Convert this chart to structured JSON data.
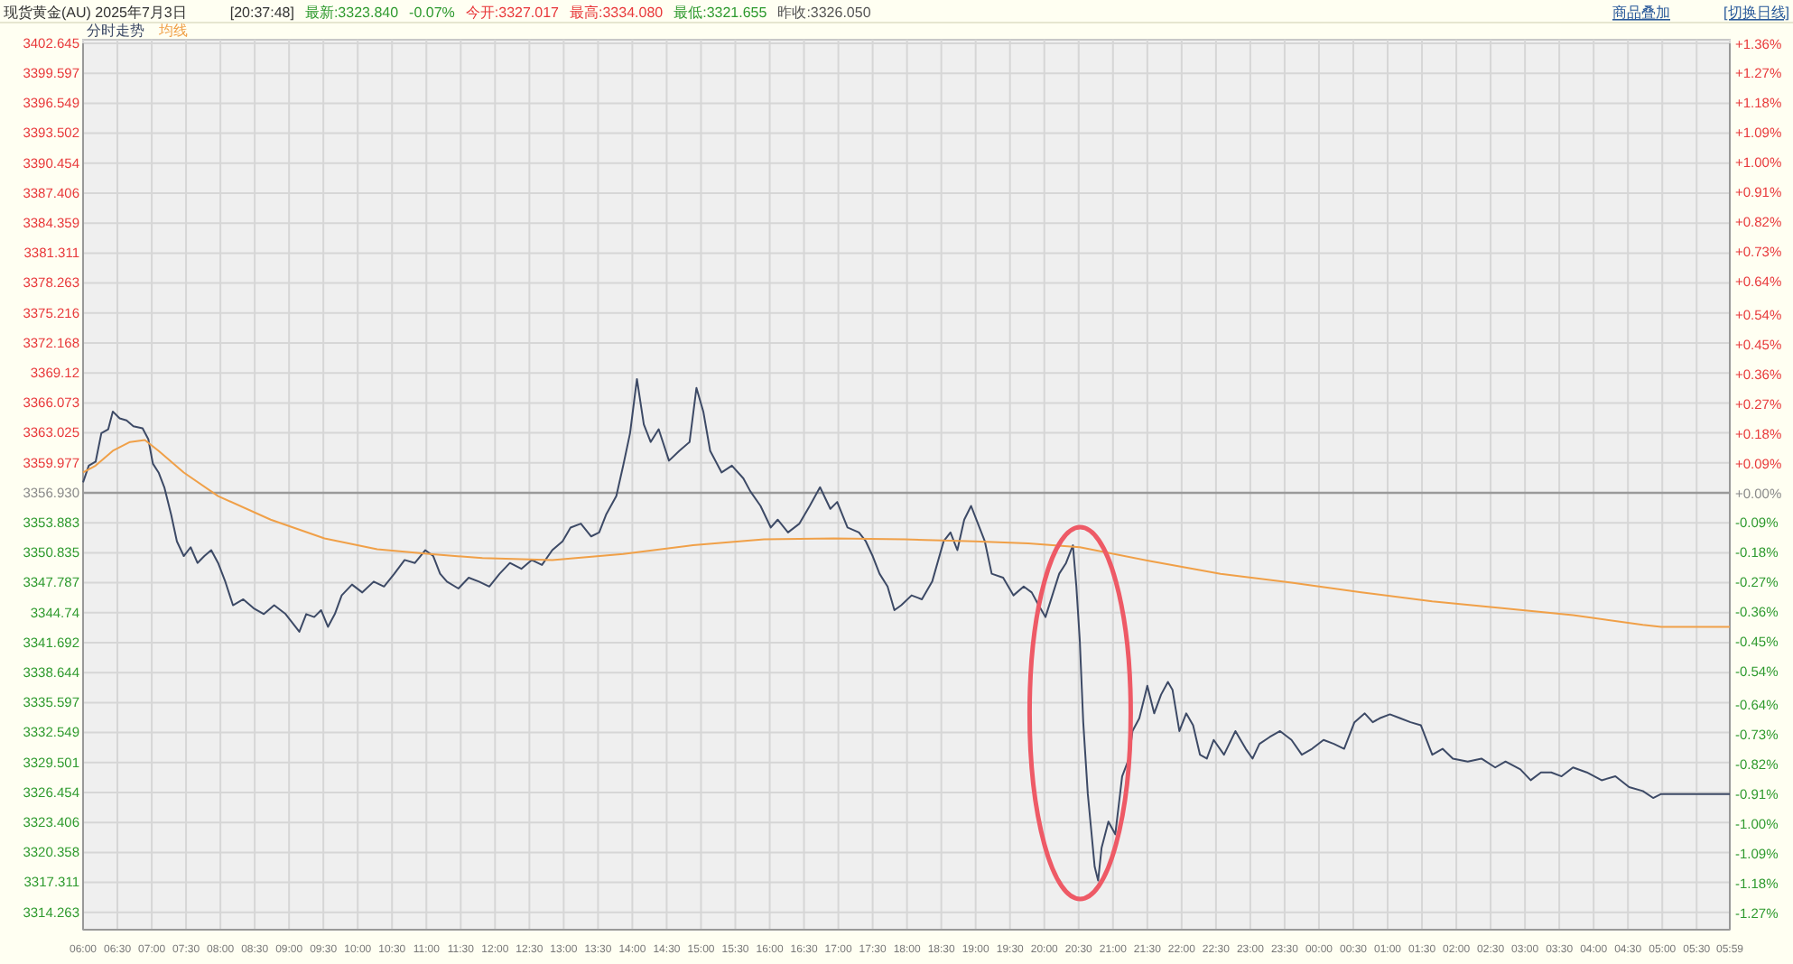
{
  "chart_data": {
    "type": "line",
    "title": "现货黄金(AU) 2025年7月3日",
    "annotations": [
      "[20:37:48]",
      "最新:3323.840",
      "-0.07%",
      "今开:3327.017",
      "最高:3334.080",
      "最低:3321.655",
      "昨收:3326.050",
      "商品叠加",
      "[切换日线]"
    ],
    "xlim": [
      "2025-07-03T06:00",
      "2025-07-04T05:59"
    ],
    "xticks": [
      {
        "value": "2025-07-03T06:00",
        "label": "06:00"
      },
      {
        "value": "2025-07-03T06:30",
        "label": "06:30"
      },
      {
        "value": "2025-07-03T07:00",
        "label": "07:00"
      },
      {
        "value": "2025-07-03T07:30",
        "label": "07:30"
      },
      {
        "value": "2025-07-03T08:00",
        "label": "08:00"
      },
      {
        "value": "2025-07-03T08:30",
        "label": "08:30"
      },
      {
        "value": "2025-07-03T09:00",
        "label": "09:00"
      },
      {
        "value": "2025-07-03T09:30",
        "label": "09:30"
      },
      {
        "value": "2025-07-03T10:00",
        "label": "10:00"
      },
      {
        "value": "2025-07-03T10:30",
        "label": "10:30"
      },
      {
        "value": "2025-07-03T11:00",
        "label": "11:00"
      },
      {
        "value": "2025-07-03T11:30",
        "label": "11:30"
      },
      {
        "value": "2025-07-03T12:00",
        "label": "12:00"
      },
      {
        "value": "2025-07-03T12:30",
        "label": "12:30"
      },
      {
        "value": "2025-07-03T13:00",
        "label": "13:00"
      },
      {
        "value": "2025-07-03T13:30",
        "label": "13:30"
      },
      {
        "value": "2025-07-03T14:00",
        "label": "14:00"
      },
      {
        "value": "2025-07-03T14:30",
        "label": "14:30"
      },
      {
        "value": "2025-07-03T15:00",
        "label": "15:00"
      },
      {
        "value": "2025-07-03T15:30",
        "label": "15:30"
      },
      {
        "value": "2025-07-03T16:00",
        "label": "16:00"
      },
      {
        "value": "2025-07-03T16:30",
        "label": "16:30"
      },
      {
        "value": "2025-07-03T17:00",
        "label": "17:00"
      },
      {
        "value": "2025-07-03T17:30",
        "label": "17:30"
      },
      {
        "value": "2025-07-03T18:00",
        "label": "18:00"
      },
      {
        "value": "2025-07-03T18:30",
        "label": "18:30"
      },
      {
        "value": "2025-07-03T19:00",
        "label": "19:00"
      },
      {
        "value": "2025-07-03T19:30",
        "label": "19:30"
      },
      {
        "value": "2025-07-03T20:00",
        "label": "20:00"
      },
      {
        "value": "2025-07-03T20:30",
        "label": "20:30"
      },
      {
        "value": "2025-07-03T21:00",
        "label": "21:00"
      },
      {
        "value": "2025-07-03T21:30",
        "label": "21:30"
      },
      {
        "value": "2025-07-03T22:00",
        "label": "22:00"
      },
      {
        "value": "2025-07-03T22:30",
        "label": "22:30"
      },
      {
        "value": "2025-07-03T23:00",
        "label": "23:00"
      },
      {
        "value": "2025-07-03T23:30",
        "label": "23:30"
      },
      {
        "value": "2025-07-04T00:00",
        "label": "00:00"
      },
      {
        "value": "2025-07-04T00:30",
        "label": "00:30"
      },
      {
        "value": "2025-07-04T01:00",
        "label": "01:00"
      },
      {
        "value": "2025-07-04T01:30",
        "label": "01:30"
      },
      {
        "value": "2025-07-04T02:00",
        "label": "02:00"
      },
      {
        "value": "2025-07-04T02:30",
        "label": "02:30"
      },
      {
        "value": "2025-07-04T03:00",
        "label": "03:00"
      },
      {
        "value": "2025-07-04T03:30",
        "label": "03:30"
      },
      {
        "value": "2025-07-04T04:00",
        "label": "04:00"
      },
      {
        "value": "2025-07-04T04:30",
        "label": "04:30"
      },
      {
        "value": "2025-07-04T05:00",
        "label": "05:00"
      },
      {
        "value": "2025-07-04T05:30",
        "label": "05:30"
      },
      {
        "value": "2025-07-04T05:59",
        "label": "05:59"
      }
    ],
    "ylim": [
      3312.5,
      3402.645
    ],
    "yticks": [
      3402.645,
      3399.597,
      3396.549,
      3393.502,
      3390.454,
      3387.406,
      3384.359,
      3381.311,
      3378.263,
      3375.216,
      3372.168,
      3369.12,
      3366.073,
      3363.025,
      3359.977,
      {
        "value": 3356.93,
        "label": "3356.930"
      },
      3353.883,
      3350.835,
      3347.787,
      3344.74,
      3341.692,
      3338.644,
      3335.597,
      3332.549,
      3329.501,
      3326.454,
      3323.406,
      3320.358,
      3317.311,
      3314.263
    ],
    "y2lim": [
      -1.32,
      1.362
    ],
    "y2ticks": [
      {
        "value": 1.36,
        "label": "+1.36%"
      },
      {
        "value": 1.27,
        "label": "+1.27%"
      },
      {
        "value": 1.18,
        "label": "+1.18%"
      },
      {
        "value": 1.09,
        "label": "+1.09%"
      },
      {
        "value": 1.0,
        "label": "+1.00%"
      },
      {
        "value": 0.91,
        "label": "+0.91%"
      },
      {
        "value": 0.82,
        "label": "+0.82%"
      },
      {
        "value": 0.73,
        "label": "+0.73%"
      },
      {
        "value": 0.64,
        "label": "+0.64%"
      },
      {
        "value": 0.54,
        "label": "+0.54%"
      },
      {
        "value": 0.45,
        "label": "+0.45%"
      },
      {
        "value": 0.36,
        "label": "+0.36%"
      },
      {
        "value": 0.27,
        "label": "+0.27%"
      },
      {
        "value": 0.18,
        "label": "+0.18%"
      },
      {
        "value": 0.09,
        "label": "+0.09%"
      },
      {
        "value": 0,
        "label": "+0.00%"
      },
      {
        "value": -0.09,
        "label": "-0.09%"
      },
      {
        "value": -0.18,
        "label": "-0.18%"
      },
      {
        "value": -0.27,
        "label": "-0.27%"
      },
      {
        "value": -0.36,
        "label": "-0.36%"
      },
      {
        "value": -0.45,
        "label": "-0.45%"
      },
      {
        "value": -0.54,
        "label": "-0.54%"
      },
      {
        "value": -0.64,
        "label": "-0.64%"
      },
      {
        "value": -0.73,
        "label": "-0.73%"
      },
      {
        "value": -0.82,
        "label": "-0.82%"
      },
      {
        "value": -0.91,
        "label": "-0.91%"
      },
      {
        "value": -1.0,
        "label": "-1.00%"
      },
      {
        "value": -1.09,
        "label": "-1.09%"
      },
      {
        "value": -1.18,
        "label": "-1.18%"
      },
      {
        "value": -1.27,
        "label": "-1.27%"
      }
    ],
    "ref_lines": [
      {
        "axis": "y",
        "value": 3356.93,
        "color": "#9a9a9a"
      }
    ],
    "grid": true,
    "legend": "top left",
    "marker": "none",
    "line_style": "solid",
    "series": [
      {
        "name": "分时走势",
        "color": "#3d4a66",
        "x": [
          "2025-07-03T06:00",
          "2025-07-03T06:05",
          "2025-07-03T06:11",
          "2025-07-03T06:16",
          "2025-07-03T06:22",
          "2025-07-03T06:26",
          "2025-07-03T06:32",
          "2025-07-03T06:38",
          "2025-07-03T06:44",
          "2025-07-03T06:52",
          "2025-07-03T06:57",
          "2025-07-03T07:01",
          "2025-07-03T07:06",
          "2025-07-03T07:11",
          "2025-07-03T07:17",
          "2025-07-03T07:22",
          "2025-07-03T07:28",
          "2025-07-03T07:34",
          "2025-07-03T07:40",
          "2025-07-03T07:46",
          "2025-07-03T07:52",
          "2025-07-03T07:58",
          "2025-07-03T08:04",
          "2025-07-03T08:11",
          "2025-07-03T08:20",
          "2025-07-03T08:29",
          "2025-07-03T08:38",
          "2025-07-03T08:47",
          "2025-07-03T08:57",
          "2025-07-03T09:03",
          "2025-07-03T09:09",
          "2025-07-03T09:15",
          "2025-07-03T09:22",
          "2025-07-03T09:28",
          "2025-07-03T09:34",
          "2025-07-03T09:40",
          "2025-07-03T09:46",
          "2025-07-03T09:55",
          "2025-07-03T10:04",
          "2025-07-03T10:14",
          "2025-07-03T10:23",
          "2025-07-03T10:32",
          "2025-07-03T10:41",
          "2025-07-03T10:50",
          "2025-07-03T10:59",
          "2025-07-03T11:06",
          "2025-07-03T11:12",
          "2025-07-03T11:18",
          "2025-07-03T11:28",
          "2025-07-03T11:37",
          "2025-07-03T11:46",
          "2025-07-03T11:55",
          "2025-07-03T12:04",
          "2025-07-03T12:13",
          "2025-07-03T12:23",
          "2025-07-03T12:32",
          "2025-07-03T12:41",
          "2025-07-03T12:50",
          "2025-07-03T12:59",
          "2025-07-03T13:06",
          "2025-07-03T13:15",
          "2025-07-03T13:24",
          "2025-07-03T13:31",
          "2025-07-03T13:37",
          "2025-07-03T13:46",
          "2025-07-03T13:52",
          "2025-07-03T13:58",
          "2025-07-03T14:04",
          "2025-07-03T14:10",
          "2025-07-03T14:16",
          "2025-07-03T14:23",
          "2025-07-03T14:32",
          "2025-07-03T14:41",
          "2025-07-03T14:50",
          "2025-07-03T14:56",
          "2025-07-03T15:02",
          "2025-07-03T15:08",
          "2025-07-03T15:18",
          "2025-07-03T15:27",
          "2025-07-03T15:37",
          "2025-07-03T15:43",
          "2025-07-03T15:52",
          "2025-07-03T16:01",
          "2025-07-03T16:07",
          "2025-07-03T16:16",
          "2025-07-03T16:26",
          "2025-07-03T16:35",
          "2025-07-03T16:44",
          "2025-07-03T16:53",
          "2025-07-03T16:59",
          "2025-07-03T17:08",
          "2025-07-03T17:18",
          "2025-07-03T17:24",
          "2025-07-03T17:30",
          "2025-07-03T17:36",
          "2025-07-03T17:43",
          "2025-07-03T17:49",
          "2025-07-03T17:55",
          "2025-07-03T18:04",
          "2025-07-03T18:13",
          "2025-07-03T18:22",
          "2025-07-03T18:32",
          "2025-07-03T18:38",
          "2025-07-03T18:44",
          "2025-07-03T18:50",
          "2025-07-03T18:56",
          "2025-07-03T19:02",
          "2025-07-03T19:08",
          "2025-07-03T19:14",
          "2025-07-03T19:24",
          "2025-07-03T19:33",
          "2025-07-03T19:42",
          "2025-07-03T19:49",
          "2025-07-03T19:55",
          "2025-07-03T20:01",
          "2025-07-03T20:07",
          "2025-07-03T20:13",
          "2025-07-03T20:19",
          "2025-07-03T20:25",
          "2025-07-03T20:28",
          "2025-07-03T20:31",
          "2025-07-03T20:34",
          "2025-07-03T20:38",
          "2025-07-03T20:41",
          "2025-07-03T20:44",
          "2025-07-03T20:47",
          "2025-07-03T20:50",
          "2025-07-03T20:56",
          "2025-07-03T21:02",
          "2025-07-03T21:08",
          "2025-07-03T21:14",
          "2025-07-03T21:17",
          "2025-07-03T21:23",
          "2025-07-03T21:30",
          "2025-07-03T21:36",
          "2025-07-03T21:42",
          "2025-07-03T21:48",
          "2025-07-03T21:52",
          "2025-07-03T21:58",
          "2025-07-03T22:04",
          "2025-07-03T22:10",
          "2025-07-03T22:16",
          "2025-07-03T22:22",
          "2025-07-03T22:28",
          "2025-07-03T22:37",
          "2025-07-03T22:47",
          "2025-07-03T22:56",
          "2025-07-03T23:02",
          "2025-07-03T23:08",
          "2025-07-03T23:17",
          "2025-07-03T23:26",
          "2025-07-03T23:36",
          "2025-07-03T23:45",
          "2025-07-03T23:54",
          "2025-07-04T00:04",
          "2025-07-04T00:13",
          "2025-07-04T00:22",
          "2025-07-04T00:31",
          "2025-07-04T00:40",
          "2025-07-04T00:47",
          "2025-07-04T00:53",
          "2025-07-04T01:02",
          "2025-07-04T01:11",
          "2025-07-04T01:20",
          "2025-07-04T01:29",
          "2025-07-04T01:39",
          "2025-07-04T01:48",
          "2025-07-04T01:57",
          "2025-07-04T02:10",
          "2025-07-04T02:22",
          "2025-07-04T02:34",
          "2025-07-04T02:43",
          "2025-07-04T02:56",
          "2025-07-04T03:05",
          "2025-07-04T03:14",
          "2025-07-04T03:23",
          "2025-07-04T03:32",
          "2025-07-04T03:42",
          "2025-07-04T03:54",
          "2025-07-04T04:07",
          "2025-07-04T04:19",
          "2025-07-04T04:31",
          "2025-07-04T04:43",
          "2025-07-04T04:52",
          "2025-07-04T04:59",
          "2025-07-04T05:59"
        ],
        "values": [
          3358.0,
          3359.7,
          3360.1,
          3363.0,
          3363.4,
          3365.2,
          3364.5,
          3364.3,
          3363.7,
          3363.5,
          3362.4,
          3359.9,
          3359.0,
          3357.5,
          3354.7,
          3352.0,
          3350.5,
          3351.4,
          3349.8,
          3350.5,
          3351.1,
          3349.8,
          3348.0,
          3345.5,
          3346.1,
          3345.2,
          3344.6,
          3345.5,
          3344.6,
          3343.7,
          3342.8,
          3344.6,
          3344.3,
          3345.0,
          3343.3,
          3344.6,
          3346.5,
          3347.6,
          3346.8,
          3347.9,
          3347.4,
          3348.7,
          3350.1,
          3349.8,
          3351.1,
          3350.5,
          3348.7,
          3347.9,
          3347.2,
          3348.3,
          3347.9,
          3347.4,
          3348.7,
          3349.8,
          3349.2,
          3350.1,
          3349.6,
          3351.1,
          3352.0,
          3353.4,
          3353.8,
          3352.5,
          3352.9,
          3354.7,
          3356.6,
          3359.7,
          3363.0,
          3368.5,
          3363.9,
          3362.1,
          3363.4,
          3360.2,
          3361.2,
          3362.1,
          3367.6,
          3365.2,
          3361.2,
          3359.0,
          3359.7,
          3358.4,
          3357.1,
          3355.6,
          3353.4,
          3354.2,
          3352.9,
          3353.8,
          3355.6,
          3357.5,
          3355.3,
          3356.0,
          3353.4,
          3352.9,
          3352.0,
          3350.5,
          3348.7,
          3347.4,
          3345.0,
          3345.5,
          3346.5,
          3346.1,
          3347.9,
          3352.0,
          3352.9,
          3351.1,
          3354.2,
          3355.6,
          3353.8,
          3352.0,
          3348.7,
          3348.3,
          3346.5,
          3347.4,
          3346.8,
          3345.5,
          3344.3,
          3346.5,
          3348.7,
          3349.8,
          3351.6,
          3347.4,
          3341.9,
          3333.6,
          3326.3,
          3322.6,
          3318.9,
          3317.5,
          3320.8,
          3323.5,
          3322.2,
          3328.1,
          3329.9,
          3332.7,
          3334.0,
          3337.3,
          3334.5,
          3336.4,
          3337.7,
          3336.9,
          3332.7,
          3334.5,
          3333.3,
          3330.3,
          3329.9,
          3331.8,
          3330.3,
          3332.7,
          3330.9,
          3329.9,
          3331.4,
          3332.1,
          3332.7,
          3331.8,
          3330.3,
          3330.9,
          3331.8,
          3331.4,
          3330.9,
          3333.6,
          3334.5,
          3333.6,
          3334.0,
          3334.4,
          3334.0,
          3333.6,
          3333.3,
          3330.3,
          3330.9,
          3329.9,
          3329.6,
          3329.9,
          3329.0,
          3329.6,
          3328.8,
          3327.7,
          3328.5,
          3328.5,
          3328.1,
          3329.0,
          3328.5,
          3327.7,
          3328.1,
          3327.0,
          3326.6,
          3325.9,
          3326.3,
          3326.3
        ]
      },
      {
        "name": "均线",
        "color": "#f0a048",
        "x": [
          "2025-07-03T06:00",
          "2025-07-03T06:11",
          "2025-07-03T06:26",
          "2025-07-03T06:41",
          "2025-07-03T06:54",
          "2025-07-03T07:06",
          "2025-07-03T07:28",
          "2025-07-03T07:58",
          "2025-07-03T08:44",
          "2025-07-03T09:31",
          "2025-07-03T10:17",
          "2025-07-03T11:03",
          "2025-07-03T11:49",
          "2025-07-03T12:50",
          "2025-07-03T13:52",
          "2025-07-03T14:53",
          "2025-07-03T15:55",
          "2025-07-03T16:56",
          "2025-07-03T17:58",
          "2025-07-03T18:59",
          "2025-07-03T19:46",
          "2025-07-03T20:31",
          "2025-07-03T21:32",
          "2025-07-03T22:34",
          "2025-07-03T23:36",
          "2025-07-04T00:37",
          "2025-07-04T01:39",
          "2025-07-04T02:40",
          "2025-07-04T03:42",
          "2025-07-04T04:43",
          "2025-07-04T04:59",
          "2025-07-04T05:59"
        ],
        "values": [
          3359.0,
          3359.7,
          3361.2,
          3362.1,
          3362.3,
          3361.2,
          3359.0,
          3356.6,
          3354.2,
          3352.3,
          3351.2,
          3350.7,
          3350.3,
          3350.1,
          3350.7,
          3351.6,
          3352.2,
          3352.3,
          3352.2,
          3352.0,
          3351.8,
          3351.4,
          3350.0,
          3348.7,
          3347.8,
          3346.8,
          3345.9,
          3345.2,
          3344.5,
          3343.5,
          3343.3,
          3343.3
        ]
      }
    ]
  }
}
